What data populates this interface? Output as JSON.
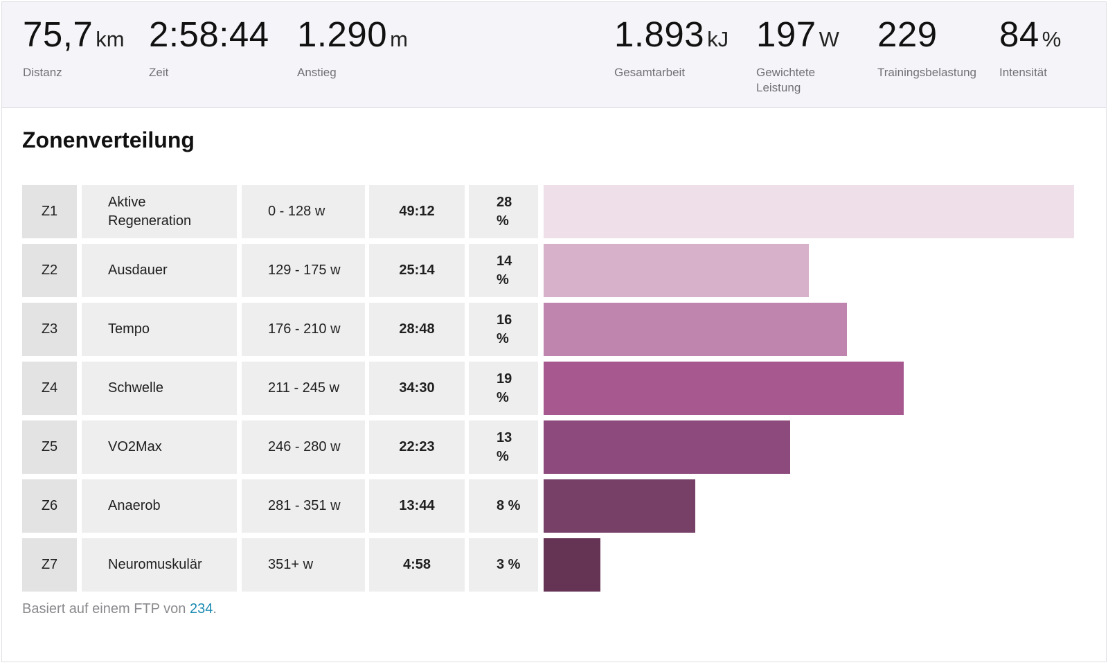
{
  "stats_left": [
    {
      "value": "75,7",
      "unit": "km",
      "label": "Distanz"
    },
    {
      "value": "2:58:44",
      "unit": "",
      "label": "Zeit"
    },
    {
      "value": "1.290",
      "unit": "m",
      "label": "Anstieg"
    }
  ],
  "stats_right": [
    {
      "value": "1.893",
      "unit": "kJ",
      "label": "Gesamtarbeit"
    },
    {
      "value": "197",
      "unit": "W",
      "label": "Gewichtete Leistung"
    },
    {
      "value": "229",
      "unit": "",
      "label": "Trainingsbelastung"
    },
    {
      "value": "84",
      "unit": "%",
      "label": "Intensität"
    }
  ],
  "section_title": "Zonenverteilung",
  "zones": [
    {
      "zone": "Z1",
      "name": "Aktive Regeneration",
      "range": "0 - 128 w",
      "time": "49:12",
      "percent": "28 %",
      "fraction": 0.28,
      "color": "#eedfe9"
    },
    {
      "zone": "Z2",
      "name": "Ausdauer",
      "range": "129 - 175 w",
      "time": "25:14",
      "percent": "14 %",
      "fraction": 0.14,
      "color": "#d7b1ca"
    },
    {
      "zone": "Z3",
      "name": "Tempo",
      "range": "176 - 210 w",
      "time": "28:48",
      "percent": "16 %",
      "fraction": 0.16,
      "color": "#c085af"
    },
    {
      "zone": "Z4",
      "name": "Schwelle",
      "range": "211 - 245 w",
      "time": "34:30",
      "percent": "19 %",
      "fraction": 0.19,
      "color": "#a6588f"
    },
    {
      "zone": "Z5",
      "name": "VO2Max",
      "range": "246 - 280 w",
      "time": "22:23",
      "percent": "13 %",
      "fraction": 0.13,
      "color": "#8d4b7d"
    },
    {
      "zone": "Z6",
      "name": "Anaerob",
      "range": "281 - 351 w",
      "time": "13:44",
      "percent": "8 %",
      "fraction": 0.08,
      "color": "#774066"
    },
    {
      "zone": "Z7",
      "name": "Neuromuskulär",
      "range": "351+ w",
      "time": "4:58",
      "percent": "3 %",
      "fraction": 0.03,
      "color": "#653455"
    }
  ],
  "footer": {
    "text": "Basiert auf einem FTP von",
    "ftp": "234",
    "suffix": "."
  }
}
